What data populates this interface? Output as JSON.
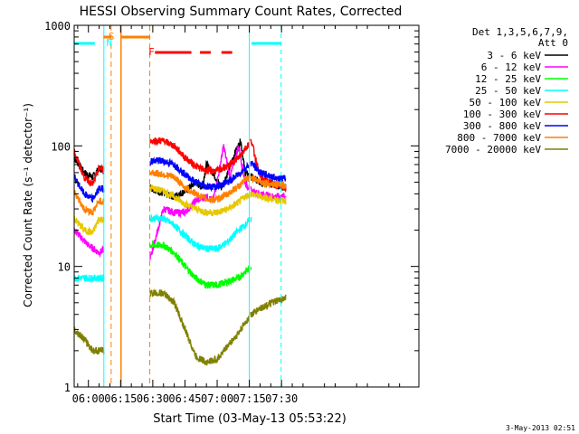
{
  "chart_data": {
    "type": "line",
    "title": "HESSI Observing Summary Count Rates, Corrected",
    "xlabel": "Start Time (03-May-13 05:53:22)",
    "ylabel": "Corrected Count Rate (s⁻¹ detector⁻¹)",
    "yscale": "log",
    "xlim_minutes": [
      53.37,
      214.0
    ],
    "ylim": [
      1,
      1000
    ],
    "x_ticks": [
      {
        "m": 60,
        "label": "06:00"
      },
      {
        "m": 75,
        "label": "06:15"
      },
      {
        "m": 90,
        "label": "06:30"
      },
      {
        "m": 105,
        "label": "06:45"
      },
      {
        "m": 120,
        "label": "07:00"
      },
      {
        "m": 135,
        "label": "07:15"
      },
      {
        "m": 150,
        "label": "07:30"
      }
    ],
    "y_ticks": [
      {
        "v": 1,
        "label": "1"
      },
      {
        "v": 10,
        "label": "10"
      },
      {
        "v": 100,
        "label": "100"
      },
      {
        "v": 1000,
        "label": "1000"
      }
    ],
    "legend_header": [
      "Det 1,3,5,6,7,9,",
      "Att 0"
    ],
    "legend_position": "right",
    "series": [
      {
        "name": "3 - 6 keV",
        "color": "#000000",
        "points": [
          [
            53.4,
            80
          ],
          [
            58,
            60
          ],
          [
            62,
            55
          ],
          [
            65,
            65
          ],
          [
            68,
            62
          ],
          [
            89,
            45
          ],
          [
            95,
            40
          ],
          [
            100,
            38
          ],
          [
            105,
            42
          ],
          [
            110,
            50
          ],
          [
            113,
            45
          ],
          [
            115,
            70
          ],
          [
            118,
            60
          ],
          [
            122,
            45
          ],
          [
            125,
            60
          ],
          [
            128,
            85
          ],
          [
            131,
            110
          ],
          [
            133,
            60
          ],
          [
            136,
            55
          ],
          [
            140,
            50
          ],
          [
            146,
            48
          ],
          [
            152,
            45
          ]
        ]
      },
      {
        "name": "6 - 12 keV",
        "color": "#ff00ff",
        "points": [
          [
            53.4,
            20
          ],
          [
            60,
            15
          ],
          [
            65,
            13
          ],
          [
            68,
            14
          ],
          [
            89,
            12
          ],
          [
            95,
            30
          ],
          [
            100,
            28
          ],
          [
            105,
            28
          ],
          [
            110,
            35
          ],
          [
            115,
            38
          ],
          [
            118,
            35
          ],
          [
            120,
            50
          ],
          [
            123,
            100
          ],
          [
            126,
            55
          ],
          [
            130,
            100
          ],
          [
            133,
            50
          ],
          [
            136,
            42
          ],
          [
            140,
            40
          ],
          [
            146,
            38
          ],
          [
            152,
            38
          ]
        ]
      },
      {
        "name": "12 - 25 keV",
        "color": "#00ff00",
        "points": [
          [
            89,
            15
          ],
          [
            95,
            15
          ],
          [
            100,
            13
          ],
          [
            105,
            10
          ],
          [
            110,
            8
          ],
          [
            115,
            7
          ],
          [
            120,
            7
          ],
          [
            125,
            7.5
          ],
          [
            130,
            8
          ],
          [
            133,
            9
          ],
          [
            136,
            10
          ]
        ]
      },
      {
        "name": "25 - 50 keV",
        "color": "#00ffff",
        "points": [
          [
            53.4,
            8
          ],
          [
            60,
            8
          ],
          [
            65,
            8
          ],
          [
            68,
            8
          ],
          [
            89,
            25
          ],
          [
            95,
            25
          ],
          [
            100,
            22
          ],
          [
            105,
            18
          ],
          [
            110,
            15
          ],
          [
            115,
            14
          ],
          [
            120,
            14
          ],
          [
            125,
            16
          ],
          [
            130,
            20
          ],
          [
            133,
            22
          ],
          [
            136,
            25
          ]
        ]
      },
      {
        "name": "50 - 100 keV",
        "color": "#e6c800",
        "points": [
          [
            53.4,
            25
          ],
          [
            58,
            20
          ],
          [
            62,
            19
          ],
          [
            65,
            25
          ],
          [
            68,
            24
          ],
          [
            89,
            45
          ],
          [
            95,
            42
          ],
          [
            100,
            38
          ],
          [
            105,
            33
          ],
          [
            110,
            30
          ],
          [
            115,
            28
          ],
          [
            120,
            28
          ],
          [
            125,
            30
          ],
          [
            130,
            34
          ],
          [
            133,
            38
          ],
          [
            136,
            40
          ],
          [
            140,
            38
          ],
          [
            146,
            36
          ],
          [
            152,
            35
          ]
        ]
      },
      {
        "name": "100 - 300 keV",
        "color": "#ff0000",
        "points": [
          [
            53.4,
            90
          ],
          [
            58,
            55
          ],
          [
            62,
            48
          ],
          [
            65,
            65
          ],
          [
            68,
            64
          ],
          [
            89,
            110
          ],
          [
            95,
            110
          ],
          [
            100,
            100
          ],
          [
            105,
            80
          ],
          [
            110,
            68
          ],
          [
            115,
            62
          ],
          [
            120,
            62
          ],
          [
            125,
            68
          ],
          [
            130,
            80
          ],
          [
            133,
            95
          ],
          [
            136,
            110
          ],
          [
            140,
            55
          ],
          [
            146,
            48
          ],
          [
            152,
            45
          ]
        ]
      },
      {
        "name": "300 - 800 keV",
        "color": "#0000ff",
        "points": [
          [
            53.4,
            55
          ],
          [
            58,
            40
          ],
          [
            62,
            36
          ],
          [
            65,
            44
          ],
          [
            68,
            44
          ],
          [
            89,
            75
          ],
          [
            95,
            75
          ],
          [
            100,
            70
          ],
          [
            105,
            58
          ],
          [
            110,
            50
          ],
          [
            115,
            46
          ],
          [
            120,
            46
          ],
          [
            125,
            50
          ],
          [
            130,
            58
          ],
          [
            133,
            65
          ],
          [
            136,
            72
          ],
          [
            140,
            60
          ],
          [
            146,
            55
          ],
          [
            152,
            53
          ]
        ]
      },
      {
        "name": "800 - 7000 keV",
        "color": "#ff8000",
        "points": [
          [
            53.4,
            42
          ],
          [
            58,
            30
          ],
          [
            62,
            28
          ],
          [
            65,
            35
          ],
          [
            68,
            34
          ],
          [
            89,
            60
          ],
          [
            95,
            58
          ],
          [
            100,
            55
          ],
          [
            105,
            45
          ],
          [
            110,
            40
          ],
          [
            115,
            36
          ],
          [
            120,
            36
          ],
          [
            125,
            40
          ],
          [
            130,
            46
          ],
          [
            133,
            52
          ],
          [
            136,
            55
          ],
          [
            140,
            50
          ],
          [
            146,
            48
          ],
          [
            152,
            47
          ]
        ]
      },
      {
        "name": "7000 - 20000 keV",
        "color": "#808000",
        "points": [
          [
            53.4,
            3
          ],
          [
            58,
            2.5
          ],
          [
            62,
            2
          ],
          [
            65,
            2
          ],
          [
            68,
            2
          ],
          [
            89,
            6
          ],
          [
            95,
            6
          ],
          [
            100,
            5
          ],
          [
            105,
            3
          ],
          [
            110,
            1.8
          ],
          [
            115,
            1.6
          ],
          [
            120,
            1.7
          ],
          [
            125,
            2.2
          ],
          [
            130,
            2.8
          ],
          [
            133,
            3.4
          ],
          [
            136,
            4
          ],
          [
            140,
            4.5
          ],
          [
            146,
            5
          ],
          [
            152,
            5.5
          ]
        ]
      }
    ],
    "annotations": [
      {
        "text": "S",
        "color": "#ff8000"
      },
      {
        "text": "N",
        "color": "#00ffff"
      },
      {
        "text": "F",
        "color": "#ff0000"
      }
    ],
    "footer_date": "3-May-2013 02:51"
  }
}
